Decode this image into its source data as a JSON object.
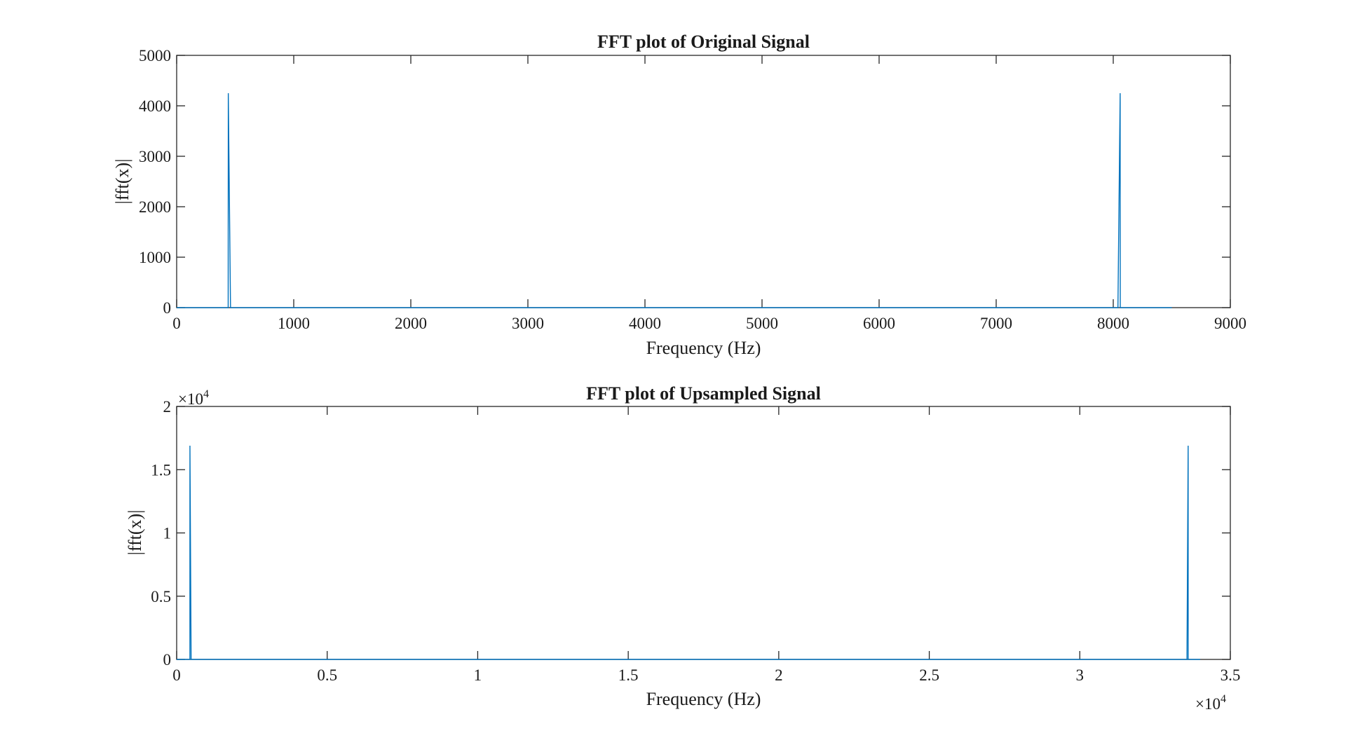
{
  "chart_data": [
    {
      "type": "line",
      "title": "FFT plot of Original Signal",
      "xlabel": "Frequency (Hz)",
      "ylabel": "|fft(x)|",
      "xlim": [
        0,
        9000
      ],
      "ylim": [
        0,
        5000
      ],
      "xticks": [
        "0",
        "1000",
        "2000",
        "3000",
        "4000",
        "5000",
        "6000",
        "7000",
        "8000",
        "9000"
      ],
      "yticks": [
        "0",
        "1000",
        "2000",
        "3000",
        "4000",
        "5000"
      ],
      "exponent_x": "",
      "exponent_y": "",
      "grid": false,
      "color": "#0072BD",
      "series": [
        {
          "x": [
            0,
            420,
            440,
            441,
            460,
            8040,
            8059,
            8060,
            8080,
            8500
          ],
          "y": [
            0,
            0,
            0,
            4250,
            0,
            0,
            4250,
            0,
            0,
            0
          ]
        }
      ]
    },
    {
      "type": "line",
      "title": "FFT plot of Upsampled Signal",
      "xlabel": "Frequency (Hz)",
      "ylabel": "|fft(x)|",
      "xlim": [
        0,
        35000
      ],
      "ylim": [
        0,
        20000
      ],
      "xticks": [
        "0",
        "0.5",
        "1",
        "1.5",
        "2",
        "2.5",
        "3",
        "3.5"
      ],
      "yticks": [
        "0",
        "0.5",
        "1",
        "1.5",
        "2"
      ],
      "exponent_x": "×10",
      "exponent_x_power": "4",
      "exponent_y": "×10",
      "exponent_y_power": "4",
      "grid": false,
      "color": "#0072BD",
      "series": [
        {
          "x": [
            0,
            400,
            440,
            441,
            480,
            33560,
            33599,
            33600,
            33640,
            34000
          ],
          "y": [
            0,
            0,
            0,
            16900,
            0,
            0,
            16900,
            0,
            0,
            0
          ]
        }
      ]
    }
  ]
}
